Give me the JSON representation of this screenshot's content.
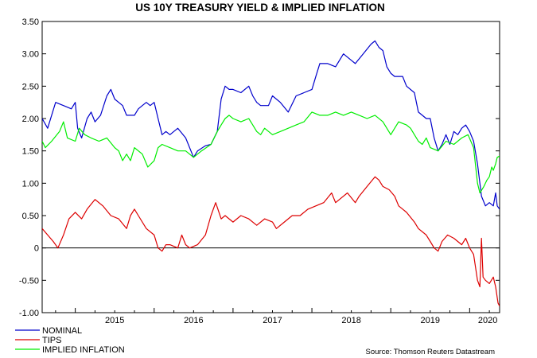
{
  "chart_data": {
    "type": "line",
    "title": "US 10Y TREASURY YIELD & IMPLIED INFLATION",
    "xlabel": "",
    "ylabel": "",
    "xlim": [
      2014.58,
      2020.38
    ],
    "ylim": [
      -1.0,
      3.5
    ],
    "yticks": [
      3.5,
      3.0,
      2.5,
      2.0,
      1.5,
      1.0,
      0.5,
      0,
      -0.5,
      -1.0
    ],
    "ytick_labels": [
      "3.50",
      "3.00",
      "2.50",
      "2.00",
      "1.50",
      "1.00",
      "0.50",
      "0",
      "-0.50",
      "-1.00"
    ],
    "xtick_labels": [
      "2015",
      "2016",
      "2017",
      "2018",
      "2019",
      "2020"
    ],
    "zero_line": true,
    "grid": false,
    "legend_position": "bottom-left",
    "series": [
      {
        "name": "NOMINAL",
        "color": "#0000cc",
        "points": [
          [
            2014.58,
            2.0
          ],
          [
            2014.65,
            1.85
          ],
          [
            2014.75,
            2.25
          ],
          [
            2014.85,
            2.2
          ],
          [
            2014.95,
            2.15
          ],
          [
            2015.0,
            2.25
          ],
          [
            2015.03,
            1.85
          ],
          [
            2015.08,
            1.7
          ],
          [
            2015.15,
            2.0
          ],
          [
            2015.2,
            2.1
          ],
          [
            2015.25,
            1.95
          ],
          [
            2015.32,
            2.05
          ],
          [
            2015.4,
            2.35
          ],
          [
            2015.45,
            2.45
          ],
          [
            2015.5,
            2.3
          ],
          [
            2015.55,
            2.25
          ],
          [
            2015.6,
            2.2
          ],
          [
            2015.65,
            2.05
          ],
          [
            2015.75,
            2.05
          ],
          [
            2015.8,
            2.15
          ],
          [
            2015.85,
            2.2
          ],
          [
            2015.9,
            2.25
          ],
          [
            2015.95,
            2.2
          ],
          [
            2016.0,
            2.25
          ],
          [
            2016.05,
            2.0
          ],
          [
            2016.1,
            1.75
          ],
          [
            2016.15,
            1.8
          ],
          [
            2016.2,
            1.75
          ],
          [
            2016.3,
            1.85
          ],
          [
            2016.4,
            1.7
          ],
          [
            2016.5,
            1.4
          ],
          [
            2016.55,
            1.5
          ],
          [
            2016.65,
            1.58
          ],
          [
            2016.72,
            1.6
          ],
          [
            2016.8,
            1.8
          ],
          [
            2016.85,
            2.3
          ],
          [
            2016.9,
            2.5
          ],
          [
            2016.95,
            2.45
          ],
          [
            2017.0,
            2.45
          ],
          [
            2017.1,
            2.4
          ],
          [
            2017.2,
            2.5
          ],
          [
            2017.25,
            2.35
          ],
          [
            2017.3,
            2.25
          ],
          [
            2017.35,
            2.2
          ],
          [
            2017.45,
            2.2
          ],
          [
            2017.5,
            2.35
          ],
          [
            2017.6,
            2.25
          ],
          [
            2017.7,
            2.1
          ],
          [
            2017.8,
            2.35
          ],
          [
            2017.9,
            2.4
          ],
          [
            2018.0,
            2.45
          ],
          [
            2018.05,
            2.65
          ],
          [
            2018.1,
            2.85
          ],
          [
            2018.2,
            2.85
          ],
          [
            2018.3,
            2.8
          ],
          [
            2018.4,
            3.0
          ],
          [
            2018.5,
            2.9
          ],
          [
            2018.55,
            2.85
          ],
          [
            2018.65,
            3.0
          ],
          [
            2018.75,
            3.15
          ],
          [
            2018.8,
            3.2
          ],
          [
            2018.85,
            3.1
          ],
          [
            2018.9,
            3.05
          ],
          [
            2018.95,
            2.8
          ],
          [
            2019.0,
            2.7
          ],
          [
            2019.05,
            2.65
          ],
          [
            2019.15,
            2.65
          ],
          [
            2019.2,
            2.5
          ],
          [
            2019.3,
            2.4
          ],
          [
            2019.35,
            2.1
          ],
          [
            2019.4,
            2.05
          ],
          [
            2019.45,
            2.0
          ],
          [
            2019.5,
            2.0
          ],
          [
            2019.55,
            1.7
          ],
          [
            2019.6,
            1.5
          ],
          [
            2019.65,
            1.6
          ],
          [
            2019.7,
            1.75
          ],
          [
            2019.75,
            1.6
          ],
          [
            2019.8,
            1.8
          ],
          [
            2019.85,
            1.75
          ],
          [
            2019.9,
            1.85
          ],
          [
            2019.95,
            1.9
          ],
          [
            2020.0,
            1.8
          ],
          [
            2020.05,
            1.65
          ],
          [
            2020.1,
            1.3
          ],
          [
            2020.15,
            0.8
          ],
          [
            2020.2,
            0.65
          ],
          [
            2020.25,
            0.7
          ],
          [
            2020.3,
            0.65
          ],
          [
            2020.33,
            0.85
          ],
          [
            2020.35,
            0.65
          ],
          [
            2020.38,
            0.6
          ]
        ]
      },
      {
        "name": "TIPS",
        "color": "#dd0000",
        "points": [
          [
            2014.58,
            0.3
          ],
          [
            2014.65,
            0.2
          ],
          [
            2014.72,
            0.1
          ],
          [
            2014.78,
            0.0
          ],
          [
            2014.85,
            0.2
          ],
          [
            2014.92,
            0.45
          ],
          [
            2015.0,
            0.55
          ],
          [
            2015.08,
            0.45
          ],
          [
            2015.15,
            0.6
          ],
          [
            2015.25,
            0.75
          ],
          [
            2015.35,
            0.65
          ],
          [
            2015.45,
            0.5
          ],
          [
            2015.55,
            0.45
          ],
          [
            2015.65,
            0.3
          ],
          [
            2015.7,
            0.5
          ],
          [
            2015.75,
            0.6
          ],
          [
            2015.8,
            0.5
          ],
          [
            2015.9,
            0.3
          ],
          [
            2016.0,
            0.2
          ],
          [
            2016.05,
            0.0
          ],
          [
            2016.1,
            -0.05
          ],
          [
            2016.15,
            0.05
          ],
          [
            2016.2,
            0.05
          ],
          [
            2016.3,
            0.0
          ],
          [
            2016.35,
            0.2
          ],
          [
            2016.4,
            0.05
          ],
          [
            2016.45,
            0.0
          ],
          [
            2016.55,
            0.05
          ],
          [
            2016.65,
            0.2
          ],
          [
            2016.72,
            0.5
          ],
          [
            2016.78,
            0.7
          ],
          [
            2016.85,
            0.45
          ],
          [
            2016.9,
            0.5
          ],
          [
            2016.95,
            0.45
          ],
          [
            2017.0,
            0.4
          ],
          [
            2017.1,
            0.5
          ],
          [
            2017.2,
            0.45
          ],
          [
            2017.3,
            0.35
          ],
          [
            2017.4,
            0.45
          ],
          [
            2017.5,
            0.4
          ],
          [
            2017.55,
            0.3
          ],
          [
            2017.65,
            0.4
          ],
          [
            2017.75,
            0.5
          ],
          [
            2017.85,
            0.5
          ],
          [
            2017.95,
            0.6
          ],
          [
            2018.05,
            0.65
          ],
          [
            2018.15,
            0.7
          ],
          [
            2018.25,
            0.85
          ],
          [
            2018.3,
            0.7
          ],
          [
            2018.35,
            0.75
          ],
          [
            2018.45,
            0.85
          ],
          [
            2018.55,
            0.7
          ],
          [
            2018.6,
            0.8
          ],
          [
            2018.7,
            0.95
          ],
          [
            2018.8,
            1.1
          ],
          [
            2018.85,
            1.05
          ],
          [
            2018.9,
            0.95
          ],
          [
            2018.98,
            0.9
          ],
          [
            2019.05,
            0.8
          ],
          [
            2019.1,
            0.65
          ],
          [
            2019.2,
            0.55
          ],
          [
            2019.3,
            0.4
          ],
          [
            2019.35,
            0.3
          ],
          [
            2019.45,
            0.2
          ],
          [
            2019.5,
            0.1
          ],
          [
            2019.55,
            0.0
          ],
          [
            2019.6,
            -0.05
          ],
          [
            2019.65,
            0.1
          ],
          [
            2019.72,
            0.2
          ],
          [
            2019.8,
            0.15
          ],
          [
            2019.9,
            0.05
          ],
          [
            2019.95,
            0.15
          ],
          [
            2020.0,
            0.0
          ],
          [
            2020.05,
            -0.1
          ],
          [
            2020.1,
            -0.5
          ],
          [
            2020.13,
            -0.6
          ],
          [
            2020.15,
            0.15
          ],
          [
            2020.17,
            -0.45
          ],
          [
            2020.2,
            -0.5
          ],
          [
            2020.25,
            -0.55
          ],
          [
            2020.3,
            -0.45
          ],
          [
            2020.33,
            -0.6
          ],
          [
            2020.36,
            -0.85
          ],
          [
            2020.38,
            -0.9
          ]
        ]
      },
      {
        "name": "IMPLIED INFLATION",
        "color": "#00ee00",
        "points": [
          [
            2014.58,
            1.65
          ],
          [
            2014.62,
            1.55
          ],
          [
            2014.7,
            1.65
          ],
          [
            2014.8,
            1.8
          ],
          [
            2014.85,
            1.95
          ],
          [
            2014.9,
            1.7
          ],
          [
            2015.0,
            1.65
          ],
          [
            2015.05,
            1.85
          ],
          [
            2015.12,
            1.75
          ],
          [
            2015.2,
            1.7
          ],
          [
            2015.3,
            1.65
          ],
          [
            2015.4,
            1.7
          ],
          [
            2015.5,
            1.55
          ],
          [
            2015.55,
            1.5
          ],
          [
            2015.6,
            1.35
          ],
          [
            2015.65,
            1.45
          ],
          [
            2015.7,
            1.35
          ],
          [
            2015.75,
            1.55
          ],
          [
            2015.85,
            1.45
          ],
          [
            2015.92,
            1.25
          ],
          [
            2016.0,
            1.35
          ],
          [
            2016.05,
            1.55
          ],
          [
            2016.1,
            1.6
          ],
          [
            2016.2,
            1.55
          ],
          [
            2016.3,
            1.5
          ],
          [
            2016.4,
            1.5
          ],
          [
            2016.5,
            1.4
          ],
          [
            2016.55,
            1.45
          ],
          [
            2016.6,
            1.5
          ],
          [
            2016.72,
            1.6
          ],
          [
            2016.8,
            1.8
          ],
          [
            2016.85,
            1.9
          ],
          [
            2016.9,
            2.0
          ],
          [
            2016.95,
            2.05
          ],
          [
            2017.0,
            2.0
          ],
          [
            2017.1,
            1.95
          ],
          [
            2017.2,
            2.0
          ],
          [
            2017.25,
            1.9
          ],
          [
            2017.3,
            1.8
          ],
          [
            2017.35,
            1.75
          ],
          [
            2017.4,
            1.85
          ],
          [
            2017.5,
            1.75
          ],
          [
            2017.6,
            1.8
          ],
          [
            2017.7,
            1.85
          ],
          [
            2017.8,
            1.9
          ],
          [
            2017.9,
            1.95
          ],
          [
            2018.0,
            2.1
          ],
          [
            2018.1,
            2.05
          ],
          [
            2018.2,
            2.05
          ],
          [
            2018.3,
            2.1
          ],
          [
            2018.4,
            2.05
          ],
          [
            2018.5,
            2.1
          ],
          [
            2018.6,
            2.05
          ],
          [
            2018.7,
            2.0
          ],
          [
            2018.8,
            2.05
          ],
          [
            2018.9,
            1.95
          ],
          [
            2019.0,
            1.75
          ],
          [
            2019.05,
            1.85
          ],
          [
            2019.1,
            1.95
          ],
          [
            2019.2,
            1.9
          ],
          [
            2019.25,
            1.85
          ],
          [
            2019.3,
            1.75
          ],
          [
            2019.35,
            1.65
          ],
          [
            2019.4,
            1.6
          ],
          [
            2019.45,
            1.7
          ],
          [
            2019.5,
            1.55
          ],
          [
            2019.6,
            1.5
          ],
          [
            2019.7,
            1.65
          ],
          [
            2019.8,
            1.6
          ],
          [
            2019.9,
            1.7
          ],
          [
            2019.98,
            1.75
          ],
          [
            2020.05,
            1.55
          ],
          [
            2020.1,
            1.0
          ],
          [
            2020.13,
            0.85
          ],
          [
            2020.18,
            0.95
          ],
          [
            2020.22,
            1.05
          ],
          [
            2020.25,
            1.1
          ],
          [
            2020.28,
            1.25
          ],
          [
            2020.3,
            1.2
          ],
          [
            2020.33,
            1.3
          ],
          [
            2020.35,
            1.4
          ],
          [
            2020.38,
            1.42
          ]
        ]
      }
    ],
    "source": "Source: Thomson Reuters Datastream"
  }
}
